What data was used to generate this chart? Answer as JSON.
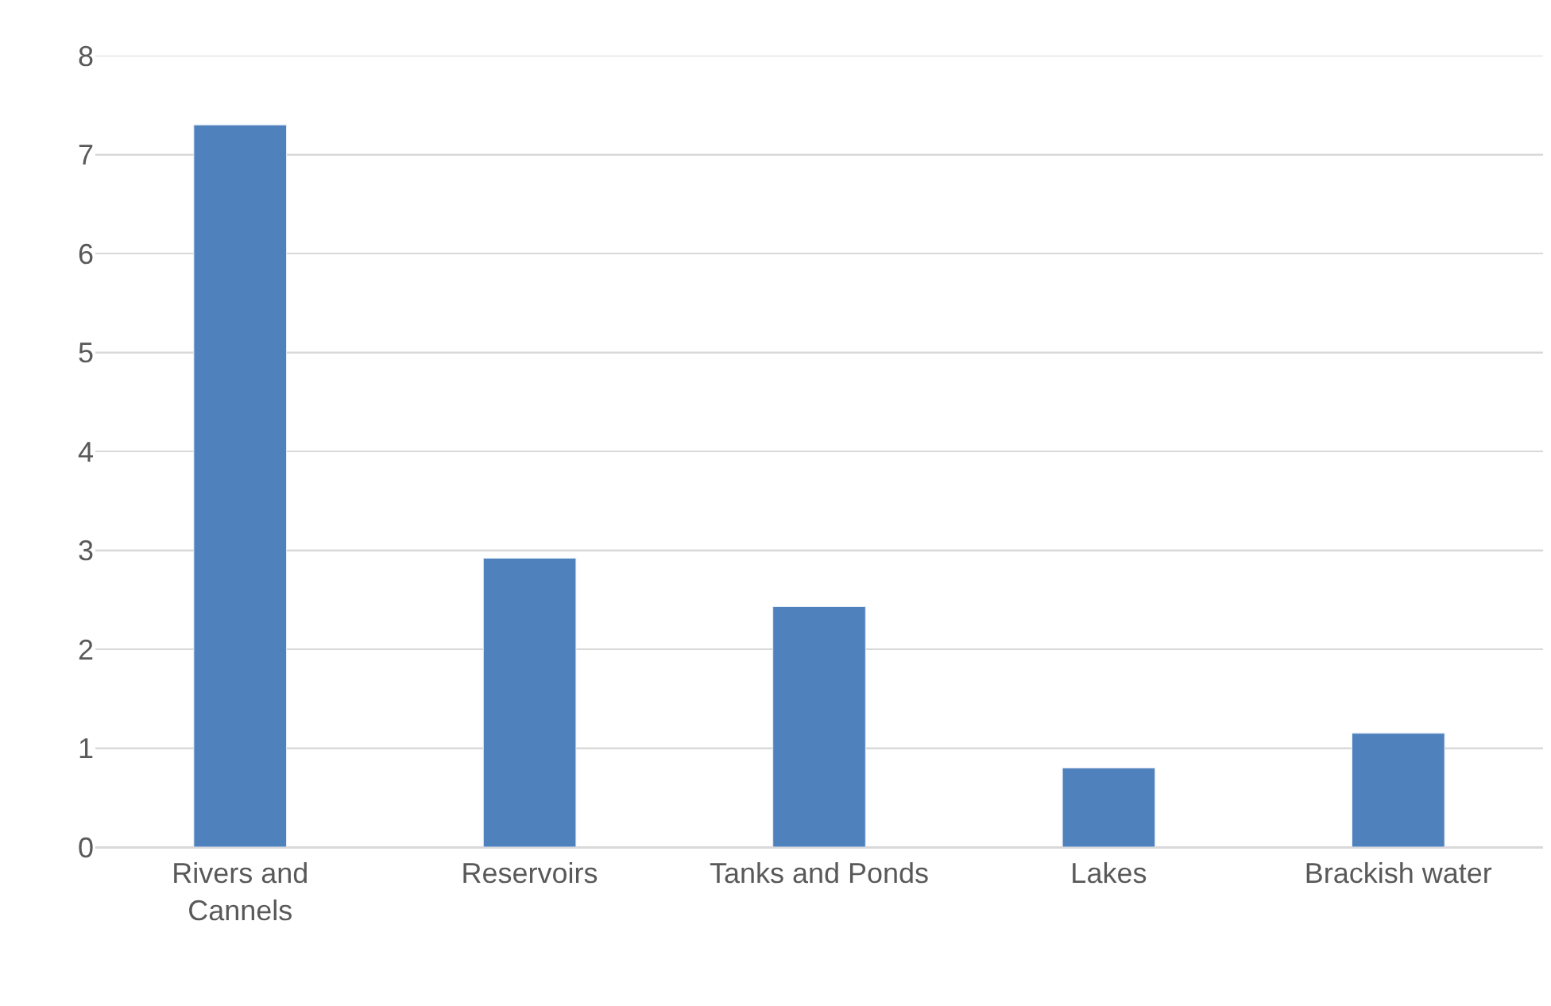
{
  "chart_data": {
    "type": "bar",
    "categories": [
      "Rivers and Cannels",
      "Reservoirs",
      "Tanks and Ponds",
      "Lakes",
      "Brackish water"
    ],
    "values": [
      7.3,
      2.92,
      2.43,
      0.8,
      1.15
    ],
    "color": "#4f81bd",
    "ylim": [
      0,
      8
    ],
    "yticks": [
      0,
      1,
      2,
      3,
      4,
      5,
      6,
      7,
      8
    ],
    "grid": "y"
  }
}
